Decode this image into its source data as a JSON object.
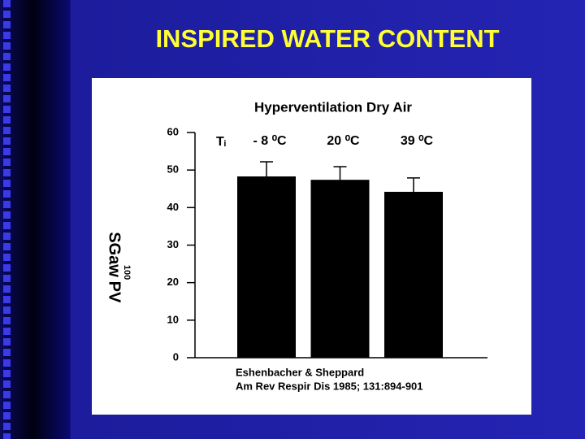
{
  "slide_title": "INSPIRED WATER CONTENT",
  "chart_data": {
    "type": "bar",
    "title": "Hyperventilation Dry Air",
    "y_label": {
      "main": "SGaw",
      "small": "100",
      "end": "PV"
    },
    "annotation": "Tᵢ",
    "categories": [
      "- 8 ⁰C",
      "20 ⁰C",
      "39 ⁰C"
    ],
    "values": [
      48.3,
      47.4,
      44.2
    ],
    "errors": [
      3.9,
      3.5,
      3.7
    ],
    "color": "#000000",
    "ylim": [
      0,
      60
    ],
    "yticks": [
      0,
      10,
      20,
      30,
      40,
      50,
      60
    ],
    "footnotes": [
      "Eshenbacher & Sheppard",
      "Am Rev Respir Dis 1985; 131:894-901"
    ]
  }
}
